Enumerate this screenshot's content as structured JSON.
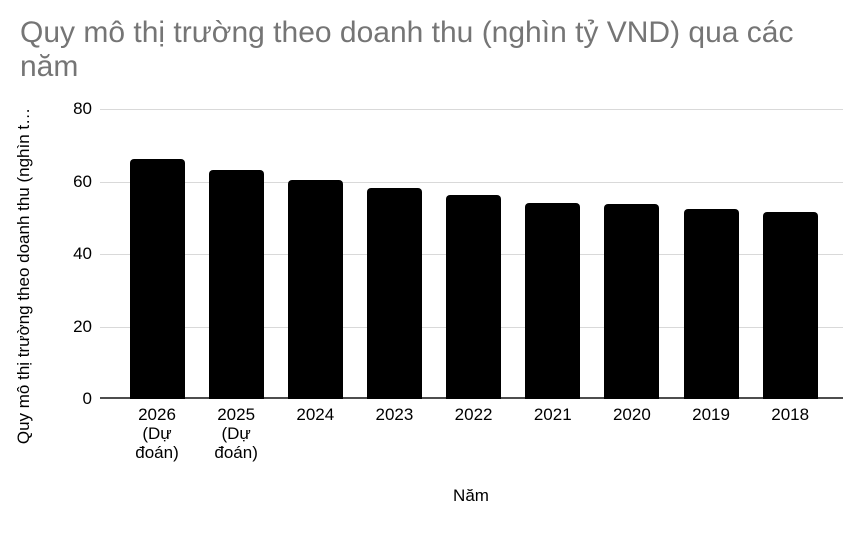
{
  "chart": {
    "title": "Quy mô thị trường theo doanh thu (nghìn tỷ VND) qua các năm",
    "y_axis_title": "Quy mô thị trường theo doanh thu (nghìn t…",
    "x_axis_title": "Năm"
  },
  "chart_data": {
    "type": "bar",
    "title": "Quy mô thị trường theo doanh thu (nghìn tỷ VND) qua các năm",
    "xlabel": "Năm",
    "ylabel": "Quy mô thị trường theo doanh thu (nghìn t…",
    "categories": [
      "2026 (Dự đoán)",
      "2025 (Dự đoán)",
      "2024",
      "2023",
      "2022",
      "2021",
      "2020",
      "2019",
      "2018"
    ],
    "tick_labels_display": [
      "2026\n(Dự\nđoán)",
      "2025\n(Dự\nđoán)",
      "2024",
      "2023",
      "2022",
      "2021",
      "2020",
      "2019",
      "2018"
    ],
    "values": [
      66.1,
      63.1,
      60.4,
      58.3,
      56.4,
      54.2,
      53.9,
      52.3,
      51.7
    ],
    "ylim": [
      0,
      80
    ],
    "yticks": [
      0,
      20,
      40,
      60,
      80
    ],
    "grid": true,
    "legend_position": "none",
    "colors": {
      "bar": "#000000",
      "title_text": "#757575",
      "axis_text": "#000000",
      "gridline": "#d9d9d9",
      "baseline": "#4d4d4d",
      "background": "#ffffff"
    }
  }
}
